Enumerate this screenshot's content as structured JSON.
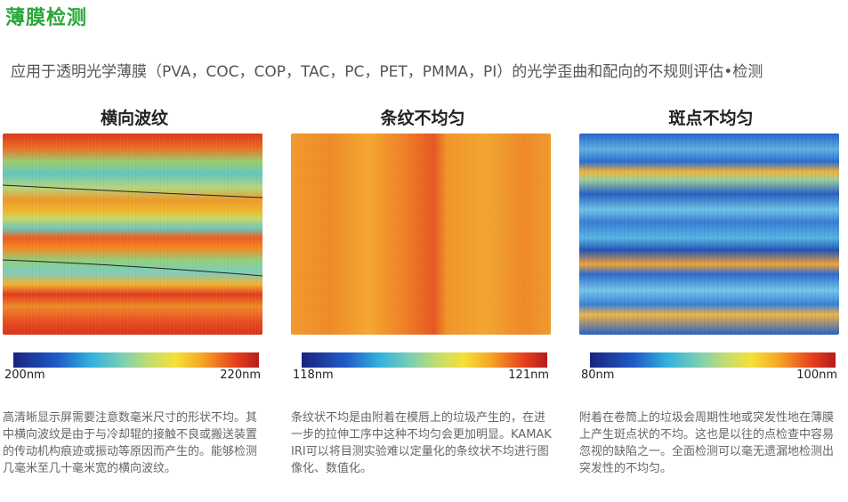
{
  "page": {
    "title": "薄膜检测",
    "subtitle": "应用于透明光学薄膜（PVA，COC，COP，TAC，PC，PET，PMMA，PI）的光学歪曲和配向的不规则评估•检测"
  },
  "panels": [
    {
      "heading": "横向波纹",
      "scale_min": "200nm",
      "scale_max": "220nm",
      "description": "高清晰显示屏需要注意数毫米尺寸的形状不均。其中横向波纹是由于与冷却辊的接触不良或搬送装置的传动机构痕迹或振动等原因而产生的。能够检测几毫米至几十毫米宽的横向波纹。"
    },
    {
      "heading": "条纹不均匀",
      "scale_min": "118nm",
      "scale_max": "121nm",
      "description": "条纹状不均是由附着在模唇上的垃圾产生的，在进一步的拉伸工序中这种不均匀会更加明显。KAMAKIRI可以将目测实验难以定量化的条纹状不均进行图像化、数值化。"
    },
    {
      "heading": "斑点不均匀",
      "scale_min": "80nm",
      "scale_max": "100nm",
      "description": "附着在卷筒上的垃圾会周期性地或突发性地在薄膜上产生斑点状的不均。这也是以往的点检查中容易忽视的缺陷之一。全面检测可以毫无遗漏地检测出突发性的不均匀。"
    }
  ]
}
